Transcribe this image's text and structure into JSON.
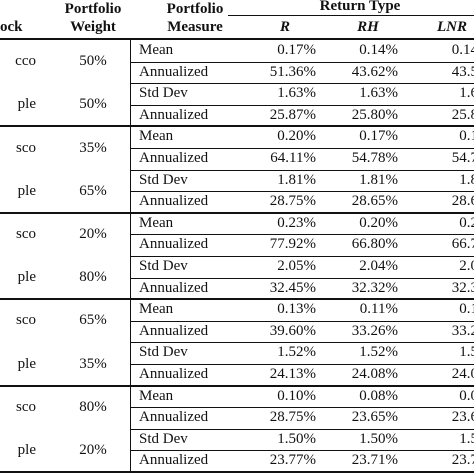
{
  "headers": {
    "stock": "ock",
    "weight_1": "Portfolio",
    "weight_2": "Weight",
    "measure_1": "Portfolio",
    "measure_2": "Measure",
    "return_type": "Return Type",
    "col_r": "R",
    "col_rh": "RH",
    "col_lnr": "LNR"
  },
  "groups": [
    {
      "stock_a": "cco",
      "weight_a": "50%",
      "stock_b": "ple",
      "weight_b": "50%",
      "rows": [
        {
          "measure": "Mean",
          "r": "0.17%",
          "rh": "0.14%",
          "lnr": "0.14"
        },
        {
          "measure": "Annualized",
          "r": "51.36%",
          "rh": "43.62%",
          "lnr": "43.5"
        },
        {
          "measure": "Std Dev",
          "r": "1.63%",
          "rh": "1.63%",
          "lnr": "1.6"
        },
        {
          "measure": "Annualized",
          "r": "25.87%",
          "rh": "25.80%",
          "lnr": "25.8"
        }
      ]
    },
    {
      "stock_a": "sco",
      "weight_a": "35%",
      "stock_b": "ple",
      "weight_b": "65%",
      "rows": [
        {
          "measure": "Mean",
          "r": "0.20%",
          "rh": "0.17%",
          "lnr": "0.1"
        },
        {
          "measure": "Annualized",
          "r": "64.11%",
          "rh": "54.78%",
          "lnr": "54.7"
        },
        {
          "measure": "Std Dev",
          "r": "1.81%",
          "rh": "1.81%",
          "lnr": "1.8"
        },
        {
          "measure": "Annualized",
          "r": "28.75%",
          "rh": "28.65%",
          "lnr": "28.6"
        }
      ]
    },
    {
      "stock_a": "sco",
      "weight_a": "20%",
      "stock_b": "ple",
      "weight_b": "80%",
      "rows": [
        {
          "measure": "Mean",
          "r": "0.23%",
          "rh": "0.20%",
          "lnr": "0.2"
        },
        {
          "measure": "Annualized",
          "r": "77.92%",
          "rh": "66.80%",
          "lnr": "66.7"
        },
        {
          "measure": "Std Dev",
          "r": "2.05%",
          "rh": "2.04%",
          "lnr": "2.0"
        },
        {
          "measure": "Annualized",
          "r": "32.45%",
          "rh": "32.32%",
          "lnr": "32.3"
        }
      ]
    },
    {
      "stock_a": "sco",
      "weight_a": "65%",
      "stock_b": "ple",
      "weight_b": "35%",
      "rows": [
        {
          "measure": "Mean",
          "r": "0.13%",
          "rh": "0.11%",
          "lnr": "0.1"
        },
        {
          "measure": "Annualized",
          "r": "39.60%",
          "rh": "33.26%",
          "lnr": "33.2"
        },
        {
          "measure": "Std Dev",
          "r": "1.52%",
          "rh": "1.52%",
          "lnr": "1.5"
        },
        {
          "measure": "Annualized",
          "r": "24.13%",
          "rh": "24.08%",
          "lnr": "24.0"
        }
      ]
    },
    {
      "stock_a": "sco",
      "weight_a": "80%",
      "stock_b": "ple",
      "weight_b": "20%",
      "rows": [
        {
          "measure": "Mean",
          "r": "0.10%",
          "rh": "0.08%",
          "lnr": "0.0"
        },
        {
          "measure": "Annualized",
          "r": "28.75%",
          "rh": "23.65%",
          "lnr": "23.6"
        },
        {
          "measure": "Std Dev",
          "r": "1.50%",
          "rh": "1.50%",
          "lnr": "1.5"
        },
        {
          "measure": "Annualized",
          "r": "23.77%",
          "rh": "23.71%",
          "lnr": "23.7"
        }
      ]
    }
  ]
}
